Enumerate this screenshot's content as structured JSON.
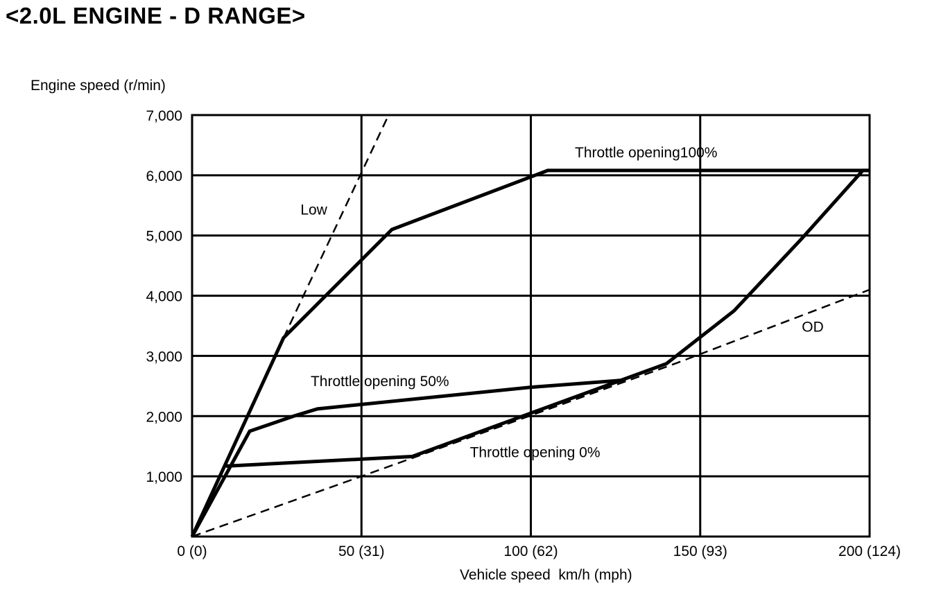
{
  "page": {
    "title": "<2.0L ENGINE - D RANGE>"
  },
  "chart_data": {
    "type": "line",
    "title": "<2.0L ENGINE - D RANGE>",
    "ylabel": "Engine speed (r/min)",
    "xlabel": "Vehicle speed  km/h (mph)",
    "xlim": [
      0,
      200
    ],
    "ylim": [
      0,
      7000
    ],
    "grid": true,
    "xticks": [
      0,
      50,
      100,
      150,
      200
    ],
    "xtick_labels": [
      "0 (0)",
      "50 (31)",
      "100 (62)",
      "150 (93)",
      "200 (124)"
    ],
    "yticks": [
      1000,
      2000,
      3000,
      4000,
      5000,
      6000,
      7000
    ],
    "ytick_labels": [
      "1,000",
      "2,000",
      "3,000",
      "4,000",
      "5,000",
      "6,000",
      "7,000"
    ],
    "series": [
      {
        "name": "Throttle opening100%",
        "style": "solid",
        "x": [
          0,
          27,
          59,
          105,
          200
        ],
        "y": [
          0,
          3300,
          5100,
          6080,
          6080
        ]
      },
      {
        "name": "Throttle opening 50%",
        "style": "solid",
        "x": [
          0,
          17,
          30,
          37,
          100,
          128
        ],
        "y": [
          0,
          1750,
          2000,
          2120,
          2480,
          2600
        ]
      },
      {
        "name": "Throttle opening 0%",
        "style": "solid",
        "x": [
          10,
          65,
          100,
          140,
          160,
          180,
          198,
          200
        ],
        "y": [
          1170,
          1330,
          2050,
          2870,
          3750,
          4950,
          6080,
          6080
        ]
      },
      {
        "name": "Low",
        "style": "dashed",
        "x": [
          27,
          58
        ],
        "y": [
          3300,
          7000
        ]
      },
      {
        "name": "OD",
        "style": "dashed",
        "x": [
          0,
          50,
          143,
          200
        ],
        "y": [
          0,
          1000,
          2880,
          4100
        ]
      }
    ],
    "annotations": [
      {
        "text": "Throttle opening100%",
        "x": 113,
        "y": 6300
      },
      {
        "text": "Low",
        "x": 32,
        "y": 5350
      },
      {
        "text": "Throttle opening 50%",
        "x": 35,
        "y": 2500
      },
      {
        "text": "Throttle opening 0%",
        "x": 82,
        "y": 1320
      },
      {
        "text": "OD",
        "x": 180,
        "y": 3400
      }
    ]
  }
}
